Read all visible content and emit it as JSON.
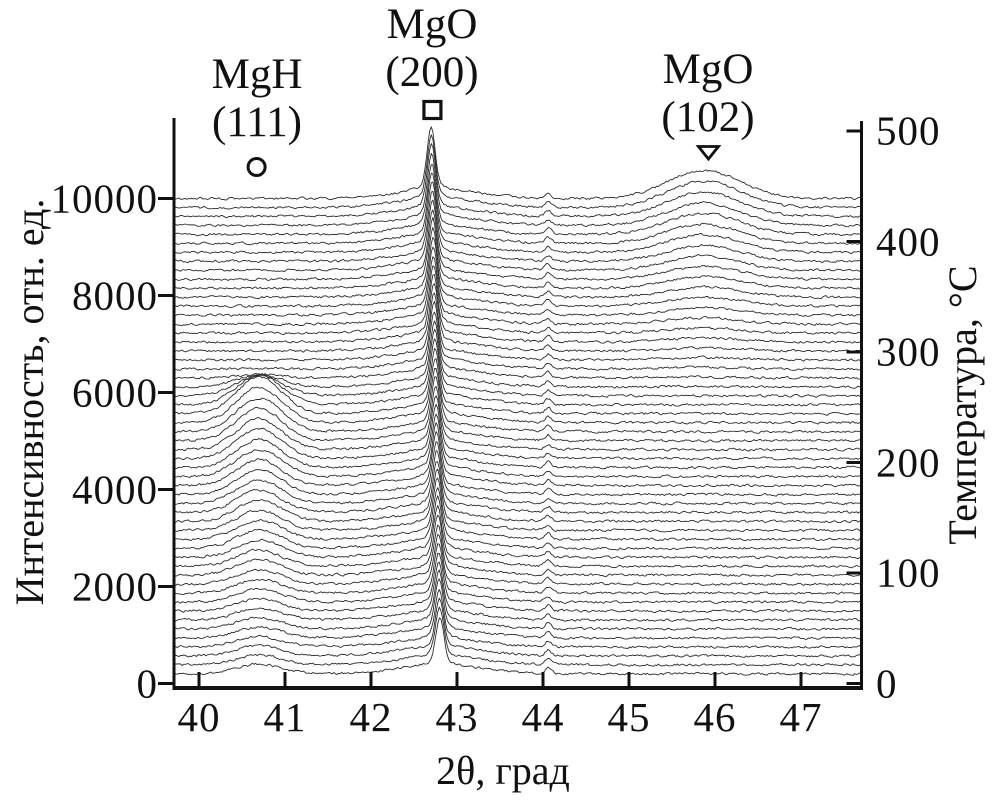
{
  "figure": {
    "background": "#ffffff"
  },
  "chart_data": {
    "type": "line",
    "subtype": "waterfall-xrd-temperature-series",
    "title": "",
    "xlabel": "2θ, град",
    "ylabel_left": "Интенсивность, отн. ед.",
    "ylabel_right": "Температура, °C",
    "x_range": [
      39.71,
      47.7
    ],
    "x_ticks": [
      40,
      41,
      42,
      43,
      44,
      45,
      46,
      47
    ],
    "y_left_range": [
      0,
      10000
    ],
    "y_left_ticks": [
      0,
      2000,
      4000,
      6000,
      8000,
      10000
    ],
    "y_right_range": [
      0,
      500
    ],
    "y_right_ticks": [
      0,
      100,
      200,
      300,
      400,
      500
    ],
    "grid": false,
    "legend": false,
    "scans": {
      "count": 54,
      "intensity_offset_min": 200,
      "intensity_offset_max": 10000,
      "temperature_min_c": 25,
      "temperature_max_c": 435
    },
    "noise_amplitude": 40,
    "peaks": {
      "mgh_111": {
        "label": "MgH (111)",
        "center_2theta": 40.7,
        "sigma": 0.26,
        "a_min": 200,
        "a_max": 760,
        "grow_exponent": 1.6,
        "fade_start_fraction": 0.55,
        "fade_end_fraction": 0.63
      },
      "mgo_200": {
        "label": "MgO (200)",
        "center_2theta_start": 42.8,
        "center_2theta_end": 42.7,
        "sigma": 0.045,
        "lorentz_gamma": 0.09,
        "gauss_fraction": 0.78,
        "a_start": 1000,
        "a_end": 1330,
        "pedestal_amplitude": 170,
        "pedestal_sigma": 0.5
      },
      "mgo_102": {
        "label": "MgO (102)",
        "center_2theta": 45.87,
        "sigma": 0.42,
        "a_max": 580,
        "onset_fraction": 0.58,
        "grow_exponent": 1.5
      },
      "minor_peak": {
        "center_2theta": 44.06,
        "sigma": 0.035,
        "amplitude": 115
      }
    },
    "annotations": [
      {
        "line1": "MgH",
        "line2": "(111)",
        "marker": "circle",
        "marker_2theta": 40.68
      },
      {
        "line1": "MgO",
        "line2": "(200)",
        "marker": "square",
        "marker_2theta": 42.72
      },
      {
        "line1": "MgO",
        "line2": "(102)",
        "marker": "triangle-down",
        "marker_2theta": 45.87
      }
    ],
    "colors": {
      "curve": "#2b2b2b",
      "axis": "#111111",
      "text": "#111111",
      "background": "#ffffff"
    }
  }
}
